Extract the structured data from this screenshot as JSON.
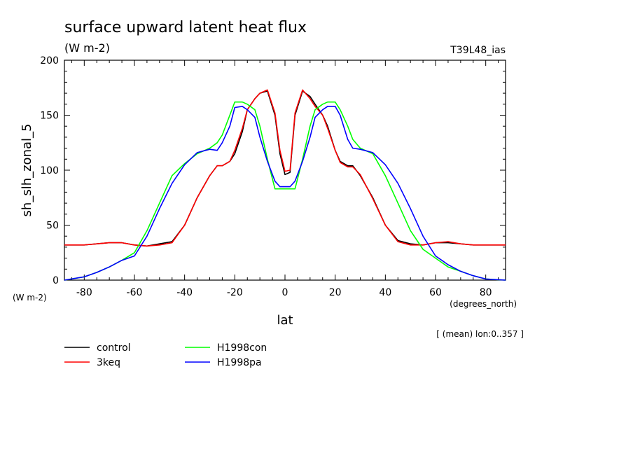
{
  "header": {
    "title": "surface upward latent heat flux",
    "units": "(W m-2)",
    "run_id": "T39L48_ias"
  },
  "chart_data": {
    "type": "line",
    "title": "surface upward latent heat flux",
    "subtitle": "(W m-2)",
    "ylabel": "sh_slh_zonal_5",
    "xlabel": "lat",
    "x_units": "(degrees_north)",
    "y_units": "(W m-2)",
    "note": "[ (mean) lon:0..357 ]",
    "xlim": [
      -87.9,
      87.9
    ],
    "ylim": [
      0,
      200
    ],
    "x_ticks": [
      -80,
      -60,
      -40,
      -20,
      0,
      20,
      40,
      60,
      80
    ],
    "y_ticks": [
      0,
      50,
      100,
      150,
      200
    ],
    "x_tick_labels": [
      "-80",
      "-60",
      "-40",
      "-20",
      "0",
      "20",
      "40",
      "60",
      "80"
    ],
    "y_tick_labels": [
      "0",
      "50",
      "100",
      "150",
      "200"
    ],
    "grid": false,
    "legend_position": "bottom-left",
    "x": [
      -87.9,
      -80,
      -75,
      -70,
      -65,
      -60,
      -55,
      -50,
      -45,
      -40,
      -35,
      -30,
      -27,
      -25,
      -22,
      -20,
      -17,
      -15,
      -12,
      -10,
      -7,
      -4,
      -2,
      0,
      2,
      4,
      7,
      10,
      12,
      15,
      17,
      20,
      22,
      25,
      27,
      30,
      35,
      40,
      45,
      50,
      55,
      60,
      65,
      70,
      75,
      80,
      87.9
    ],
    "series": [
      {
        "name": "control",
        "color": "#000000",
        "values": [
          32,
          32,
          33,
          34,
          34,
          32,
          31,
          33,
          35,
          50,
          75,
          95,
          104,
          104,
          108,
          115,
          135,
          155,
          165,
          170,
          172,
          150,
          115,
          96,
          98,
          150,
          172,
          167,
          160,
          150,
          140,
          118,
          108,
          104,
          104,
          95,
          75,
          50,
          36,
          33,
          32,
          34,
          34,
          33,
          32,
          32,
          32
        ]
      },
      {
        "name": "3keq",
        "color": "#ff0000",
        "values": [
          32,
          32,
          33,
          34,
          34,
          32,
          31,
          32,
          34,
          50,
          75,
          95,
          104,
          104,
          108,
          118,
          138,
          155,
          165,
          170,
          173,
          152,
          118,
          99,
          100,
          152,
          173,
          165,
          158,
          150,
          138,
          118,
          107,
          103,
          103,
          96,
          74,
          50,
          35,
          32,
          32,
          34,
          35,
          33,
          32,
          32,
          32
        ]
      },
      {
        "name": "H1998con",
        "color": "#00ff00",
        "values": [
          0,
          3,
          7,
          12,
          18,
          25,
          45,
          70,
          95,
          106,
          115,
          120,
          125,
          132,
          150,
          162,
          162,
          160,
          155,
          140,
          110,
          83,
          83,
          83,
          83,
          83,
          110,
          140,
          155,
          160,
          162,
          162,
          155,
          140,
          128,
          120,
          115,
          95,
          70,
          45,
          28,
          20,
          12,
          8,
          4,
          1,
          0
        ]
      },
      {
        "name": "H1998pa",
        "color": "#0000ff",
        "values": [
          0,
          3,
          7,
          12,
          18,
          22,
          40,
          65,
          88,
          105,
          116,
          119,
          118,
          125,
          140,
          157,
          158,
          155,
          148,
          130,
          108,
          90,
          85,
          85,
          85,
          90,
          108,
          130,
          148,
          155,
          158,
          158,
          150,
          128,
          120,
          119,
          116,
          105,
          88,
          65,
          40,
          22,
          14,
          8,
          4,
          1,
          0
        ]
      }
    ]
  }
}
